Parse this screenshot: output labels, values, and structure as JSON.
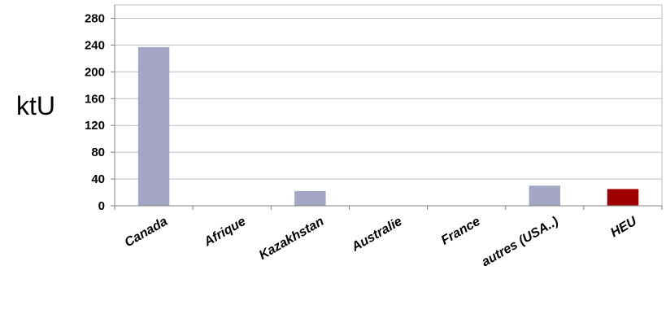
{
  "chart_data": {
    "type": "bar",
    "title": "",
    "xlabel": "",
    "ylabel": "ktU",
    "categories": [
      "Canada",
      "Afrique",
      "Kazakhstan",
      "Australie",
      "France",
      "autres (USA..)",
      "HEU"
    ],
    "values": [
      237,
      0,
      22,
      0,
      0,
      30,
      25
    ],
    "yticks": [
      0,
      40,
      80,
      120,
      160,
      200,
      240,
      280
    ],
    "ylim": [
      0,
      300
    ],
    "grid": true,
    "legend": "none",
    "colors": {
      "default": "#a5a6c6",
      "highlight": "#a00000",
      "grid": "#bfbfbf",
      "axis": "#808080"
    },
    "highlight_category": "HEU"
  }
}
